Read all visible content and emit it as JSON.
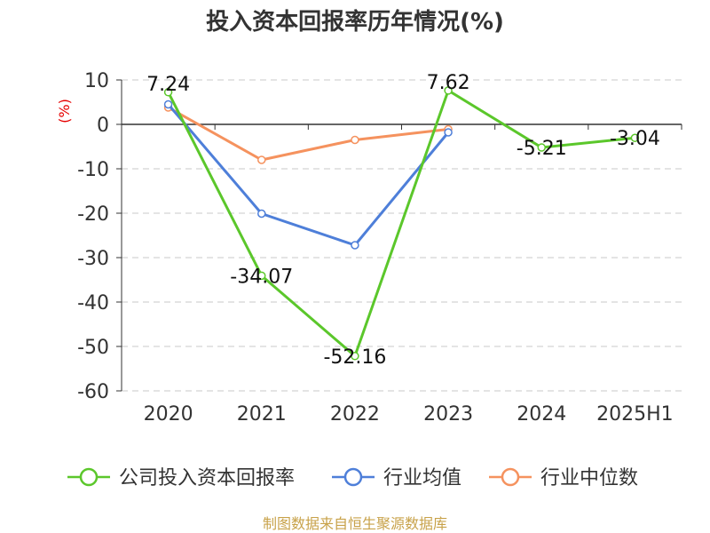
{
  "chart_data": {
    "type": "line",
    "title": "投入资本回报率历年情况(%)",
    "ylabel": "(%)",
    "categories": [
      "2020",
      "2021",
      "2022",
      "2023",
      "2024",
      "2025H1"
    ],
    "ylim": [
      -60,
      10
    ],
    "yticks": [
      10,
      0,
      -10,
      -20,
      -30,
      -40,
      -50,
      -60
    ],
    "grid": true,
    "legend_position": "bottom",
    "series": [
      {
        "name": "公司投入资本回报率",
        "color": "#5bc72b",
        "values": [
          7.24,
          -34.07,
          -52.16,
          7.62,
          -5.21,
          -3.04
        ],
        "labels": [
          "7.24",
          "-34.07",
          "-52.16",
          "7.62",
          "-5.21",
          "-3.04"
        ]
      },
      {
        "name": "行业均值",
        "color": "#4e7fd9",
        "values": [
          4.5,
          -20.1,
          -27.2,
          -1.8,
          null,
          null
        ]
      },
      {
        "name": "行业中位数",
        "color": "#f5925e",
        "values": [
          3.8,
          -8.0,
          -3.5,
          -1.1,
          null,
          null
        ]
      }
    ]
  },
  "source_text": "制图数据来自恒生聚源数据库"
}
